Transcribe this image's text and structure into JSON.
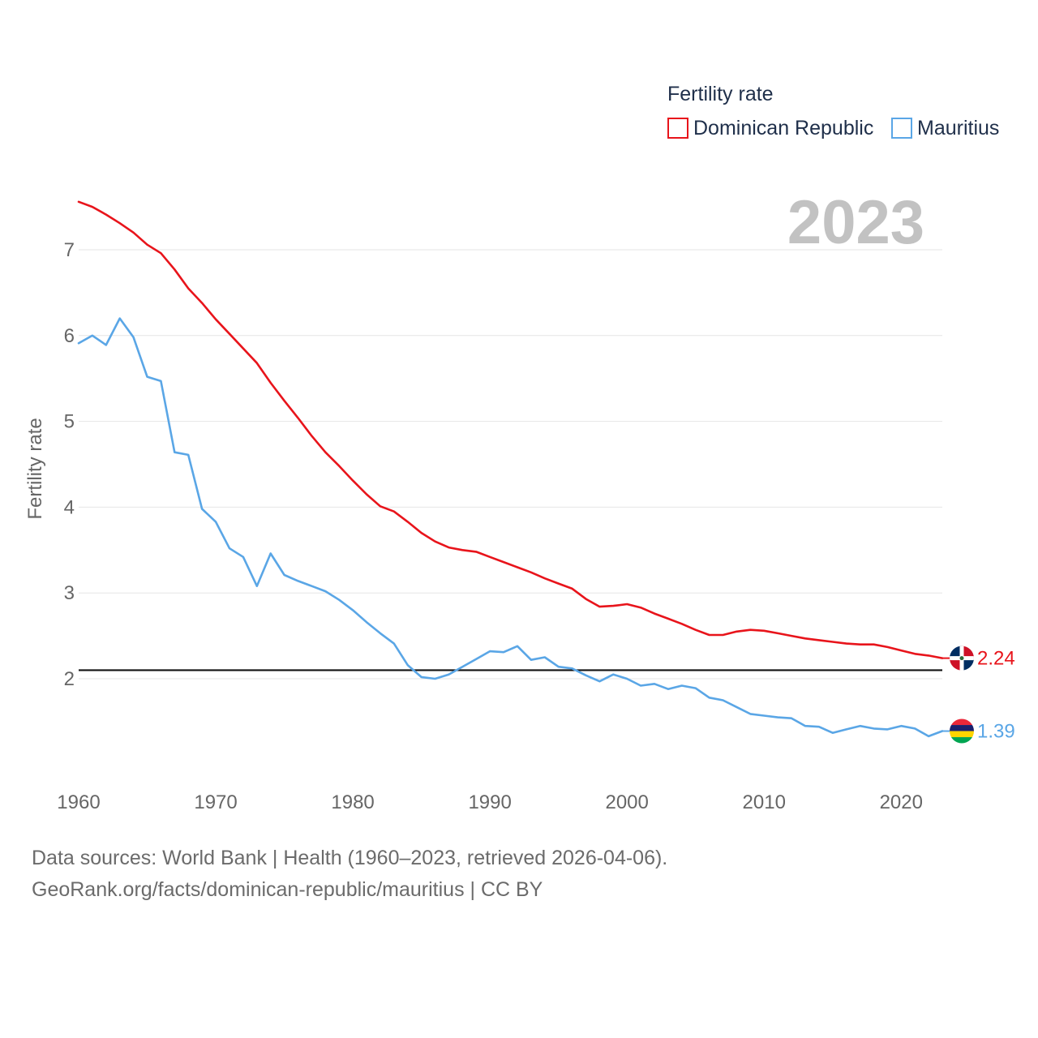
{
  "chart_data": {
    "type": "line",
    "ylabel": "Fertility rate",
    "xlabel": "",
    "xlim": [
      1960,
      2023
    ],
    "ylim": [
      0.9,
      7.6
    ],
    "yticks": [
      2,
      3,
      4,
      5,
      6,
      7
    ],
    "xticks": [
      1960,
      1970,
      1980,
      1990,
      2000,
      2010,
      2020
    ],
    "grid": true,
    "year_label": "2023",
    "reference_line": 2.1,
    "legend": {
      "title": "Fertility rate",
      "placement": "top-right"
    },
    "x": [
      1960,
      1961,
      1962,
      1963,
      1964,
      1965,
      1966,
      1967,
      1968,
      1969,
      1970,
      1971,
      1972,
      1973,
      1974,
      1975,
      1976,
      1977,
      1978,
      1979,
      1980,
      1981,
      1982,
      1983,
      1984,
      1985,
      1986,
      1987,
      1988,
      1989,
      1990,
      1991,
      1992,
      1993,
      1994,
      1995,
      1996,
      1997,
      1998,
      1999,
      2000,
      2001,
      2002,
      2003,
      2004,
      2005,
      2006,
      2007,
      2008,
      2009,
      2010,
      2011,
      2012,
      2013,
      2014,
      2015,
      2016,
      2017,
      2018,
      2019,
      2020,
      2021,
      2022,
      2023
    ],
    "series": [
      {
        "name": "Dominican Republic",
        "color": "#e8141b",
        "end_label": "2.24",
        "values": [
          7.56,
          7.5,
          7.41,
          7.31,
          7.2,
          7.06,
          6.96,
          6.77,
          6.55,
          6.38,
          6.19,
          6.02,
          5.85,
          5.68,
          5.45,
          5.24,
          5.04,
          4.83,
          4.64,
          4.48,
          4.31,
          4.15,
          4.01,
          3.95,
          3.83,
          3.7,
          3.6,
          3.53,
          3.5,
          3.48,
          3.42,
          3.36,
          3.3,
          3.24,
          3.17,
          3.11,
          3.05,
          2.93,
          2.84,
          2.85,
          2.87,
          2.83,
          2.76,
          2.7,
          2.64,
          2.57,
          2.51,
          2.51,
          2.55,
          2.57,
          2.56,
          2.53,
          2.5,
          2.47,
          2.45,
          2.43,
          2.41,
          2.4,
          2.4,
          2.37,
          2.33,
          2.29,
          2.27,
          2.24
        ]
      },
      {
        "name": "Mauritius",
        "color": "#5aa6e6",
        "end_label": "1.39",
        "values": [
          5.91,
          6.0,
          5.89,
          6.2,
          5.98,
          5.52,
          5.47,
          4.64,
          4.61,
          3.98,
          3.83,
          3.52,
          3.42,
          3.08,
          3.46,
          3.21,
          3.14,
          3.08,
          3.02,
          2.92,
          2.8,
          2.66,
          2.53,
          2.41,
          2.16,
          2.02,
          2.0,
          2.05,
          2.14,
          2.23,
          2.32,
          2.31,
          2.38,
          2.22,
          2.25,
          2.14,
          2.12,
          2.04,
          1.97,
          2.05,
          2.0,
          1.92,
          1.94,
          1.88,
          1.92,
          1.89,
          1.78,
          1.75,
          1.67,
          1.59,
          1.57,
          1.55,
          1.54,
          1.45,
          1.44,
          1.37,
          1.41,
          1.45,
          1.42,
          1.41,
          1.45,
          1.42,
          1.33,
          1.39
        ]
      }
    ]
  },
  "footer": {
    "line1": "Data sources: World Bank | Health (1960–2023, retrieved 2026-04-06).",
    "line2": "GeoRank.org/facts/dominican-republic/mauritius | CC BY"
  },
  "icons": {
    "dominican_flag": "dominican-republic-flag-icon",
    "mauritius_flag": "mauritius-flag-icon"
  }
}
